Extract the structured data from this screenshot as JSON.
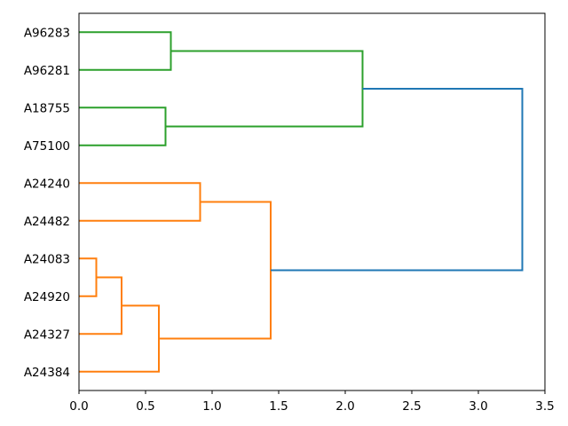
{
  "chart_data": {
    "type": "dendrogram",
    "orientation": "right",
    "title": "",
    "xlabel": "",
    "ylabel": "",
    "grid": false,
    "legend": null,
    "leaves": [
      "A96283",
      "A96281",
      "A18755",
      "A75100",
      "A24240",
      "A24482",
      "A24083",
      "A24920",
      "A24327",
      "A24384"
    ],
    "merges": [
      {
        "id": "G1",
        "children": [
          "A96283",
          "A96281"
        ],
        "height": 0.69,
        "color": "green"
      },
      {
        "id": "G2",
        "children": [
          "A18755",
          "A75100"
        ],
        "height": 0.65,
        "color": "green"
      },
      {
        "id": "G3",
        "children": [
          "G1",
          "G2"
        ],
        "height": 2.13,
        "color": "green"
      },
      {
        "id": "O1",
        "children": [
          "A24240",
          "A24482"
        ],
        "height": 0.91,
        "color": "orange"
      },
      {
        "id": "O2",
        "children": [
          "A24083",
          "A24920"
        ],
        "height": 0.13,
        "color": "orange"
      },
      {
        "id": "O3",
        "children": [
          "O2",
          "A24327"
        ],
        "height": 0.32,
        "color": "orange"
      },
      {
        "id": "O4",
        "children": [
          "O3",
          "A24384"
        ],
        "height": 0.6,
        "color": "orange"
      },
      {
        "id": "O5",
        "children": [
          "O1",
          "O4"
        ],
        "height": 1.44,
        "color": "orange"
      },
      {
        "id": "ROOT",
        "children": [
          "G3",
          "O5"
        ],
        "height": 3.33,
        "color": "blue"
      }
    ],
    "colors": {
      "green": "#2ca02c",
      "orange": "#ff7f0e",
      "blue": "#1f77b4"
    },
    "xlim": [
      0,
      3.5
    ],
    "x_ticks": [
      0.0,
      0.5,
      1.0,
      1.5,
      2.0,
      2.5,
      3.0,
      3.5
    ],
    "x_tick_labels": [
      "0.0",
      "0.5",
      "1.0",
      "1.5",
      "2.0",
      "2.5",
      "3.0",
      "3.5"
    ],
    "axis_color": "#000000"
  }
}
